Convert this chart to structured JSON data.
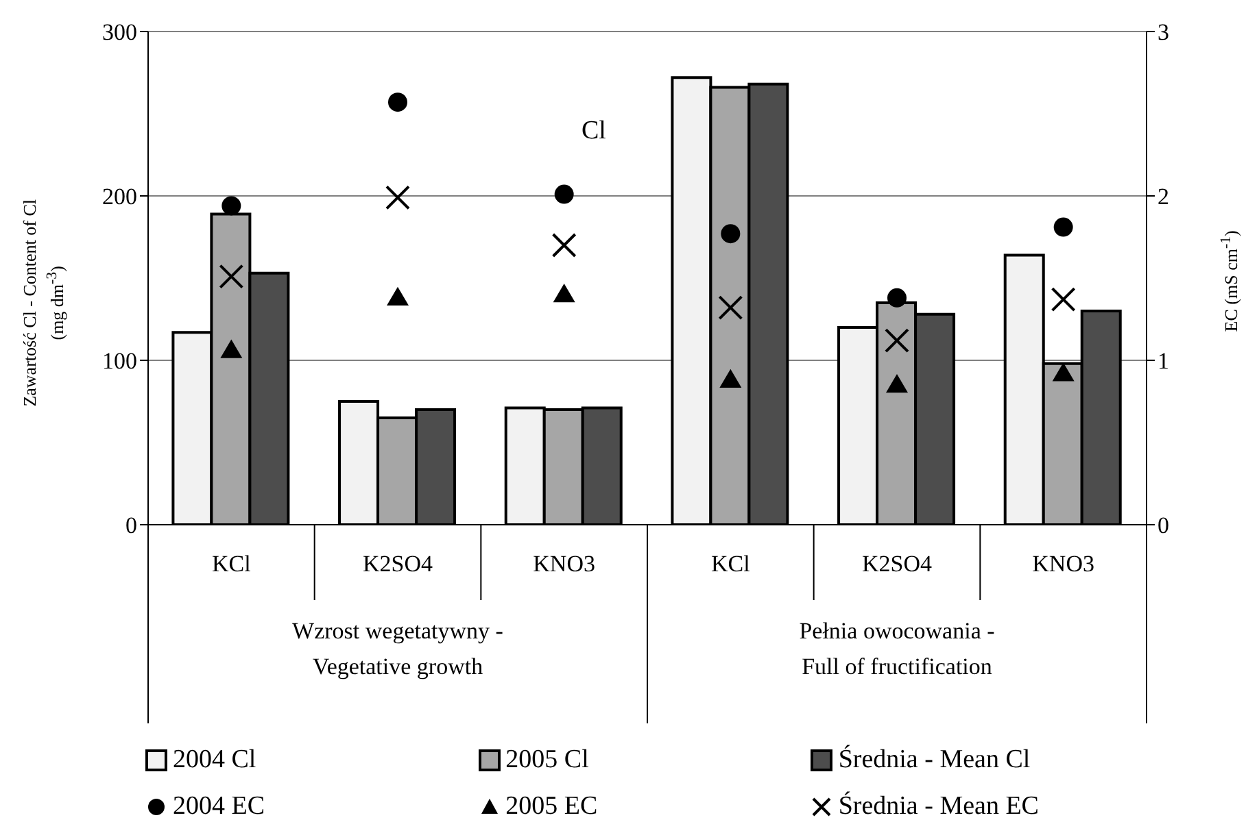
{
  "chart_data": {
    "type": "bar",
    "categories": [
      "KCl",
      "K2SO4",
      "KNO3",
      "KCl",
      "K2SO4",
      "KNO3"
    ],
    "series": [
      {
        "name": "2004 Cl",
        "color": "#f2f2f2",
        "values": [
          117,
          75,
          71,
          272,
          120,
          164
        ]
      },
      {
        "name": "2005 Cl",
        "color": "#a6a6a6",
        "values": [
          189,
          65,
          70,
          266,
          135,
          98
        ]
      },
      {
        "name": "Średnia - Mean Cl",
        "color": "#4d4d4d",
        "values": [
          153,
          70,
          71,
          268,
          128,
          130
        ]
      },
      {
        "name": "2004 EC",
        "type": "scatter",
        "marker": "circle",
        "axis": "y2",
        "color": "#000000",
        "values": [
          1.94,
          2.57,
          2.01,
          1.77,
          1.38,
          1.81
        ]
      },
      {
        "name": "2005 EC",
        "type": "scatter",
        "marker": "triangle",
        "axis": "y2",
        "color": "#000000",
        "values": [
          1.06,
          1.38,
          1.4,
          0.88,
          0.85,
          0.92
        ]
      },
      {
        "name": "Średnia - Mean EC",
        "type": "scatter",
        "marker": "cross",
        "axis": "y2",
        "color": "#000000",
        "values": [
          1.51,
          1.99,
          1.7,
          1.32,
          1.12,
          1.37
        ]
      }
    ],
    "ylabel": "Zawartość Cl - Content of Cl\n(mg  dm$^{-3}$)",
    "y2label": "EC (mS cm$^{-1}$)",
    "ylim": [
      0,
      300
    ],
    "yticks": [
      0,
      100,
      200,
      300
    ],
    "y2lim": [
      0,
      3
    ],
    "y2ticks": [
      0,
      1,
      2,
      3
    ],
    "annotations": [
      "Cl",
      "Wzrost wegetatywny -\nVegetative growth",
      "Pełnia owocowania -\nFull of fructification"
    ],
    "grid": "y",
    "legend": "bottom"
  }
}
